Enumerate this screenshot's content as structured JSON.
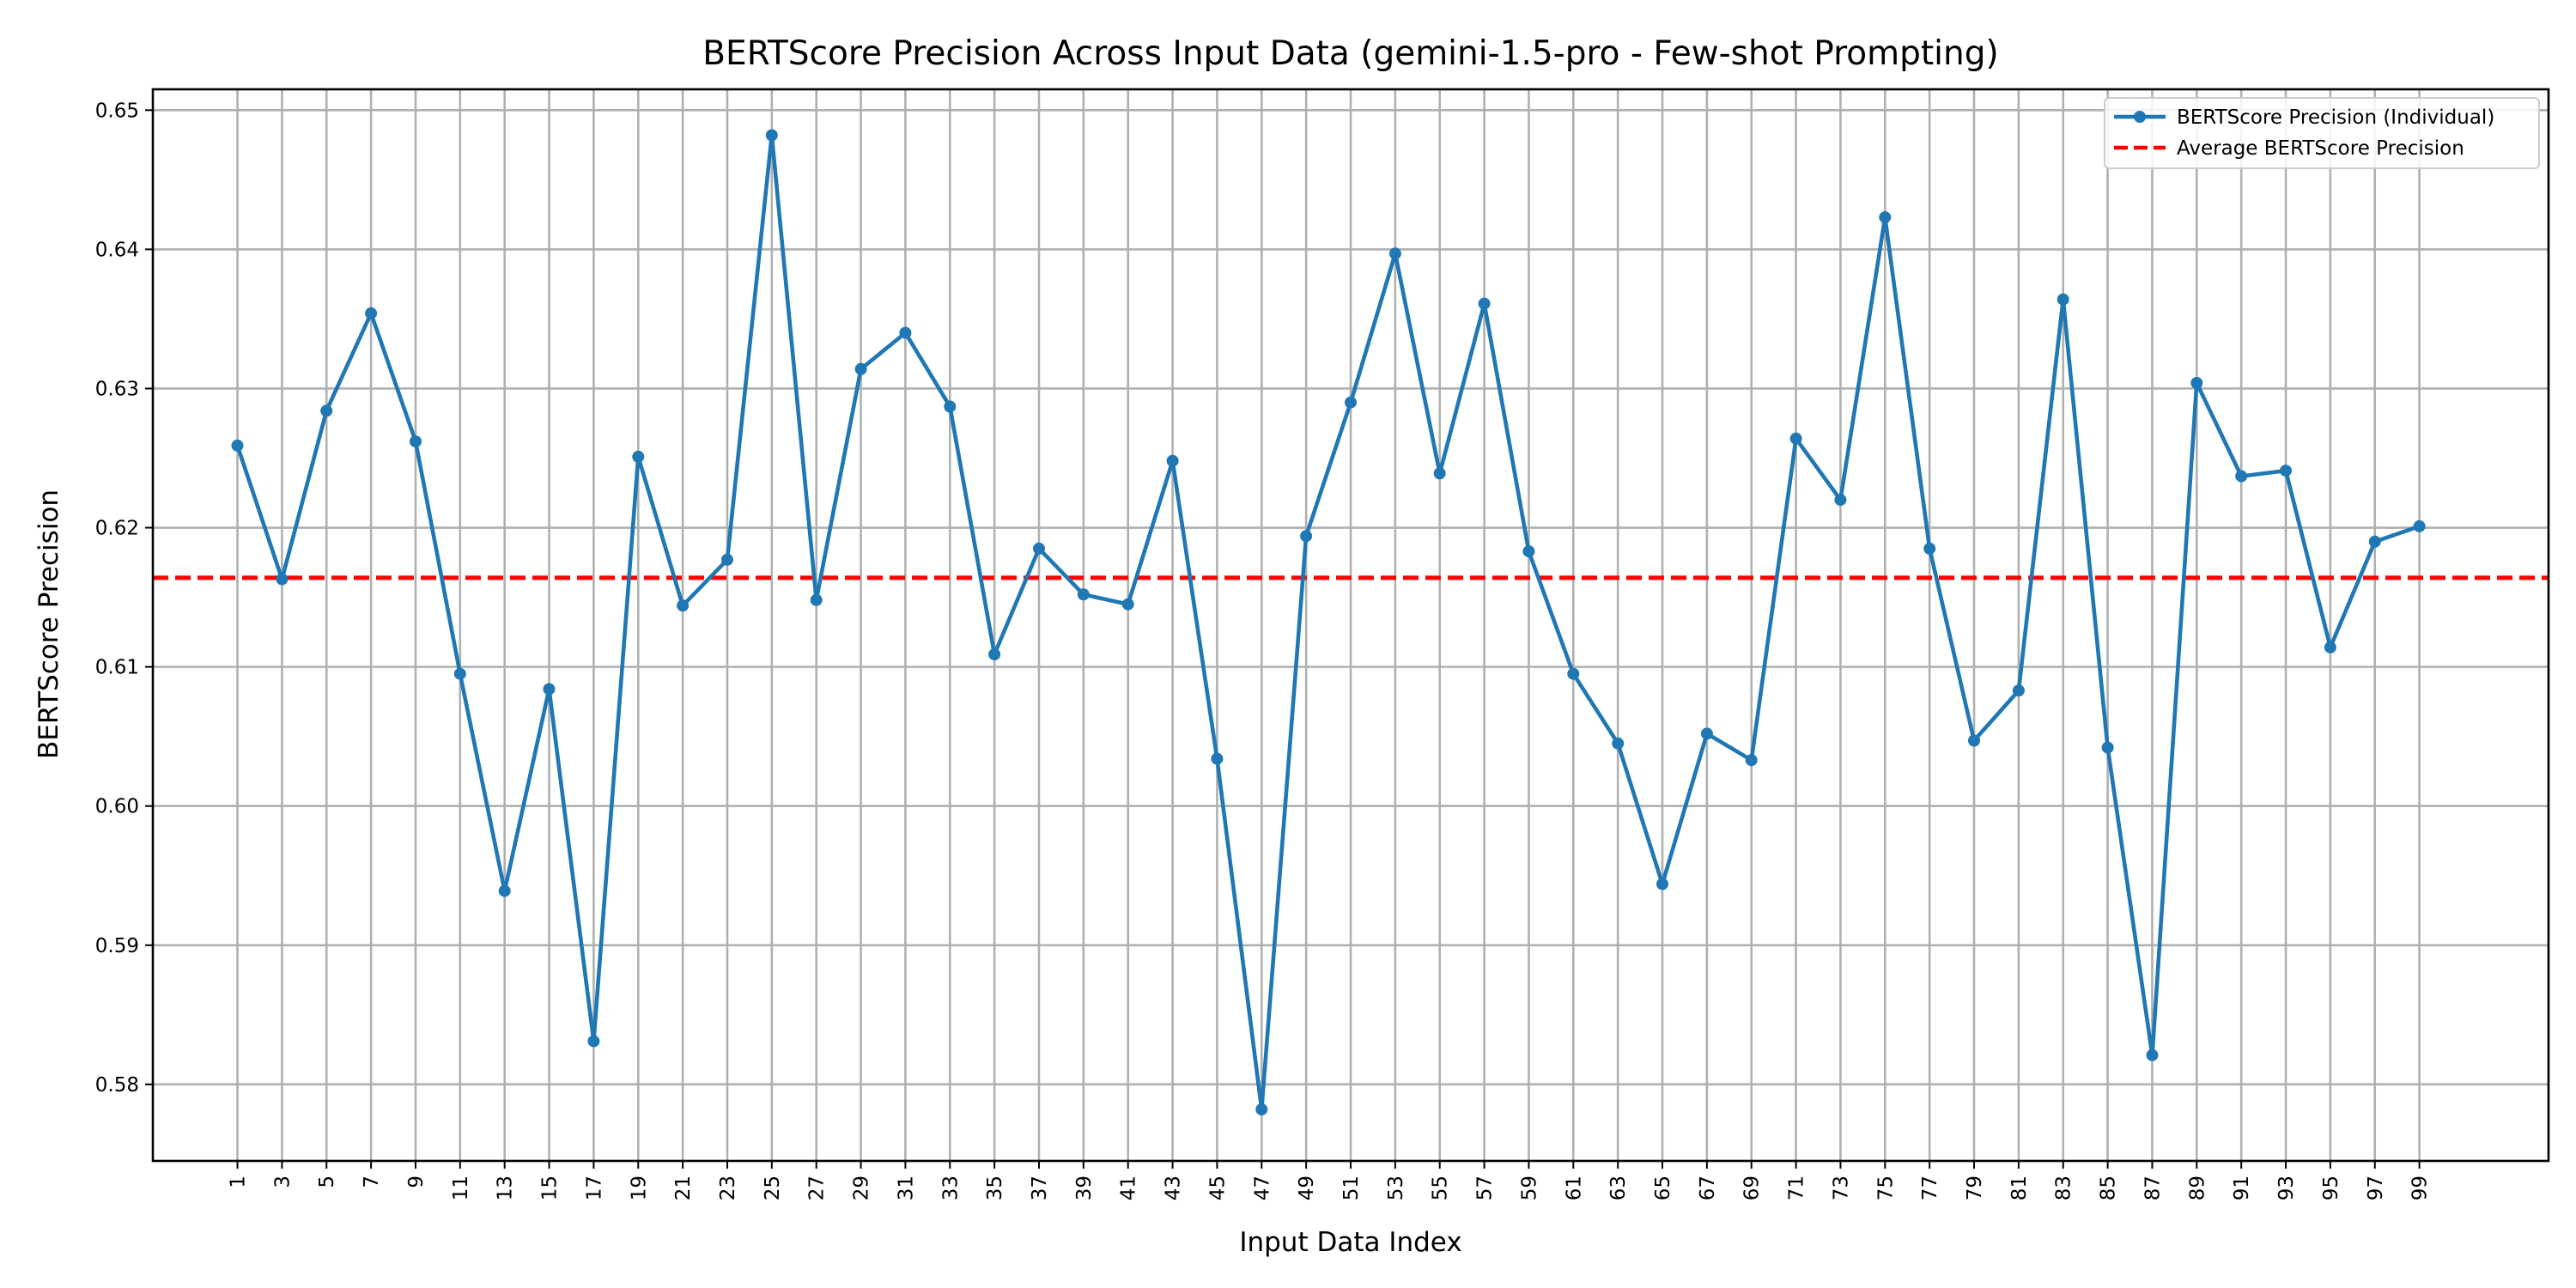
{
  "chart_data": {
    "type": "line",
    "title": "BERTScore Precision Across Input Data (gemini-1.5-pro - Few-shot Prompting)",
    "xlabel": "Input Data Index",
    "ylabel": "BERTScore Precision",
    "xlim": [
      -2.8,
      104.8
    ],
    "ylim": [
      0.5745,
      0.6515
    ],
    "x_ticks": [
      1,
      3,
      5,
      7,
      9,
      11,
      13,
      15,
      17,
      19,
      21,
      23,
      25,
      27,
      29,
      31,
      33,
      35,
      37,
      39,
      41,
      43,
      45,
      47,
      49,
      51,
      53,
      55,
      57,
      59,
      61,
      63,
      65,
      67,
      69,
      71,
      73,
      75,
      77,
      79,
      81,
      83,
      85,
      87,
      89,
      91,
      93,
      95,
      97,
      99
    ],
    "y_ticks": [
      0.58,
      0.59,
      0.6,
      0.61,
      0.62,
      0.63,
      0.64,
      0.65
    ],
    "y_tick_labels": [
      "0.58",
      "0.59",
      "0.60",
      "0.61",
      "0.62",
      "0.63",
      "0.64",
      "0.65"
    ],
    "grid": true,
    "legend_position": "top-right",
    "series": [
      {
        "name": "BERTScore Precision (Individual)",
        "color": "#1f77b4",
        "style": "line-with-markers",
        "x": [
          1,
          3,
          5,
          7,
          9,
          11,
          13,
          15,
          17,
          19,
          21,
          23,
          25,
          27,
          29,
          31,
          33,
          35,
          37,
          39,
          41,
          43,
          45,
          47,
          49,
          51,
          53,
          55,
          57,
          59,
          61,
          63,
          65,
          67,
          69,
          71,
          73,
          75,
          77,
          79,
          81,
          83,
          85,
          87,
          89,
          91,
          93,
          95,
          97,
          99
        ],
        "values": [
          0.6259,
          0.6163,
          0.6284,
          0.6354,
          0.6262,
          0.6095,
          0.5939,
          0.6084,
          0.5831,
          0.6251,
          0.6144,
          0.6177,
          0.6482,
          0.6148,
          0.6314,
          0.634,
          0.6287,
          0.6109,
          0.6185,
          0.6152,
          0.6145,
          0.6248,
          0.6034,
          0.5782,
          0.6194,
          0.629,
          0.6397,
          0.6239,
          0.6361,
          0.6183,
          0.6095,
          0.6045,
          0.5944,
          0.6052,
          0.6033,
          0.6264,
          0.622,
          0.6423,
          0.6185,
          0.6047,
          0.6083,
          0.6364,
          0.6042,
          0.5821,
          0.6304,
          0.6237,
          0.6241,
          0.6114,
          0.619,
          0.6201
        ]
      },
      {
        "name": "Average BERTScore Precision",
        "color": "#ff0000",
        "style": "dashed-horizontal",
        "value": 0.6164
      }
    ]
  }
}
